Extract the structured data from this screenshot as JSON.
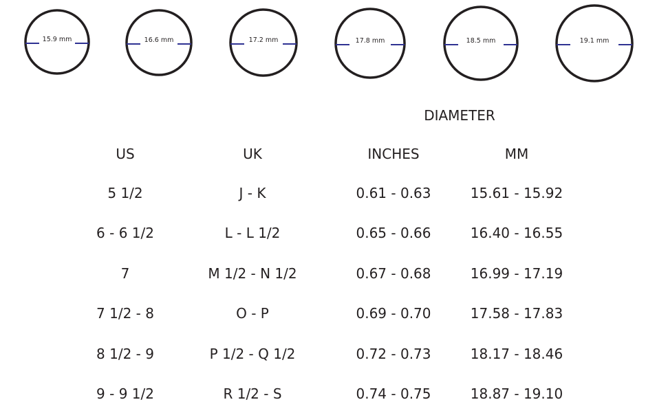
{
  "rings": [
    "15.9 mm",
    "16.6 mm",
    "17.2 mm",
    "17.8 mm",
    "18.5 mm",
    "19.1 mm"
  ],
  "table": {
    "group_header": "DIAMETER",
    "headers": [
      "US",
      "UK",
      "INCHES",
      "MM"
    ],
    "rows": [
      [
        "5 1/2",
        "J - K",
        "0.61 - 0.63",
        "15.61 - 15.92"
      ],
      [
        "6 - 6 1/2",
        "L - L 1/2",
        "0.65 - 0.66",
        "16.40 - 16.55"
      ],
      [
        "7",
        "M 1/2 - N 1/2",
        "0.67 - 0.68",
        "16.99 - 17.19"
      ],
      [
        "7 1/2 - 8",
        "O - P",
        "0.69 - 0.70",
        "17.58 - 17.83"
      ],
      [
        "8 1/2 - 9",
        "P 1/2 - Q 1/2",
        "0.72 - 0.73",
        "18.17 - 18.46"
      ],
      [
        "9 - 9 1/2",
        "R 1/2 - S",
        "0.74 - 0.75",
        "18.87 - 19.10"
      ]
    ]
  }
}
